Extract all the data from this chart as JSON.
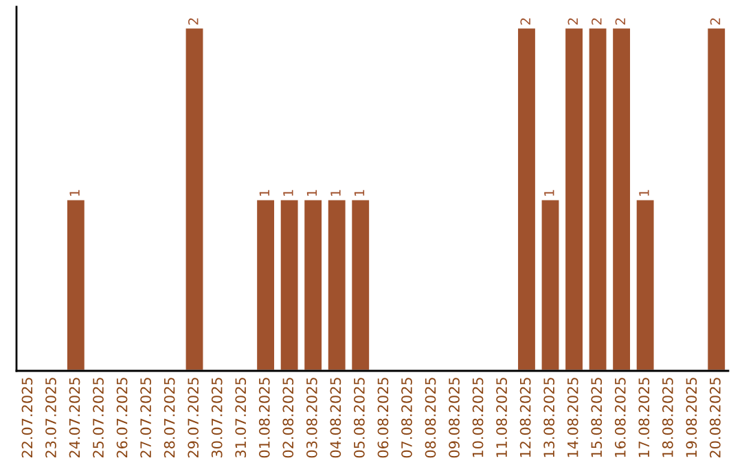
{
  "chart_data": {
    "type": "bar",
    "categories": [
      "22.07.2025",
      "23.07.2025",
      "24.07.2025",
      "25.07.2025",
      "26.07.2025",
      "27.07.2025",
      "28.07.2025",
      "29.07.2025",
      "30.07.2025",
      "31.07.2025",
      "01.08.2025",
      "02.08.2025",
      "03.08.2025",
      "04.08.2025",
      "05.08.2025",
      "06.08.2025",
      "07.08.2025",
      "08.08.2025",
      "09.08.2025",
      "10.08.2025",
      "11.08.2025",
      "12.08.2025",
      "13.08.2025",
      "14.08.2025",
      "15.08.2025",
      "16.08.2025",
      "17.08.2025",
      "18.08.2025",
      "19.08.2025",
      "20.08.2025"
    ],
    "values": [
      null,
      null,
      1,
      null,
      null,
      null,
      null,
      2,
      null,
      null,
      1,
      1,
      1,
      1,
      1,
      null,
      null,
      null,
      null,
      null,
      null,
      2,
      1,
      2,
      2,
      2,
      1,
      null,
      null,
      2
    ],
    "value_labels": [
      null,
      null,
      "1",
      null,
      null,
      null,
      null,
      "2",
      null,
      null,
      "1",
      "1",
      "1",
      "1",
      "1",
      null,
      null,
      null,
      null,
      null,
      null,
      "2",
      "1",
      "2",
      "2",
      "2",
      "1",
      null,
      null,
      "2"
    ],
    "color": "#a0522d",
    "tick_labels": "x",
    "grid": false,
    "legend": false
  }
}
